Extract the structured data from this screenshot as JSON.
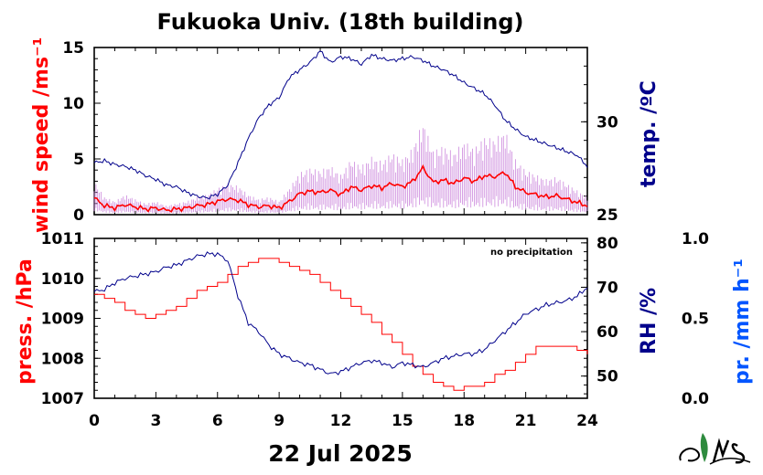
{
  "title": "Fukuoka Univ. (18th building)",
  "date_label": "22 Jul 2025",
  "note": "no precipitation",
  "colors": {
    "wind": "#ff0000",
    "wind_gust": "#cc88dd",
    "temp": "#00008b",
    "press": "#ff0000",
    "rh": "#00008b",
    "precip": "#0055ff"
  },
  "chart_data": [
    {
      "type": "line",
      "panel": "top",
      "x_ticks": [
        "0",
        "3",
        "6",
        "9",
        "12",
        "15",
        "18",
        "21",
        "24"
      ],
      "xlim": [
        0,
        24
      ],
      "y_left": {
        "label": "wind speed /ms⁻¹",
        "ticks": [
          "0",
          "5",
          "10",
          "15"
        ],
        "lim": [
          0,
          15
        ]
      },
      "y_right": {
        "label": "temp. /ºC",
        "ticks": [
          "25",
          "30"
        ],
        "lim": [
          25,
          34
        ]
      },
      "series": [
        {
          "axis": "left",
          "x": [
            0,
            0.5,
            1,
            1.5,
            2,
            2.5,
            3,
            3.5,
            4,
            4.5,
            5,
            5.5,
            6,
            6.5,
            7,
            7.5,
            8,
            8.5,
            9,
            9.5,
            10,
            10.5,
            11,
            11.5,
            12,
            12.5,
            13,
            13.5,
            14,
            14.5,
            15,
            15.5,
            16,
            16.5,
            17,
            17.5,
            18,
            18.5,
            19,
            19.5,
            20,
            20.5,
            21,
            21.5,
            22,
            22.5,
            23,
            23.5,
            24
          ],
          "y": [
            1.5,
            0.8,
            0.6,
            0.9,
            0.7,
            0.5,
            0.6,
            0.4,
            0.5,
            0.6,
            0.8,
            0.9,
            1.2,
            1.4,
            1.3,
            0.9,
            0.7,
            0.8,
            0.6,
            1.2,
            1.9,
            2.1,
            2.0,
            2.2,
            1.8,
            2.5,
            2.2,
            2.6,
            2.4,
            2.8,
            2.5,
            3.0,
            4.2,
            2.9,
            3.1,
            2.8,
            3.3,
            3.0,
            3.5,
            3.4,
            3.8,
            2.5,
            2.0,
            1.8,
            1.6,
            1.7,
            1.4,
            1.1,
            0.8
          ]
        },
        {
          "axis": "right",
          "x": [
            0,
            0.5,
            1,
            1.5,
            2,
            2.5,
            3,
            3.5,
            4,
            4.5,
            5,
            5.5,
            6,
            6.5,
            7,
            7.5,
            8,
            8.5,
            9,
            9.5,
            10,
            10.5,
            11,
            11.5,
            12,
            12.5,
            13,
            13.5,
            14,
            14.5,
            15,
            15.5,
            16,
            16.5,
            17,
            17.5,
            18,
            18.5,
            19,
            19.5,
            20,
            20.5,
            21,
            21.5,
            22,
            22.5,
            23,
            23.5,
            24
          ],
          "y": [
            27.8,
            27.9,
            27.7,
            27.6,
            27.4,
            27.1,
            26.9,
            26.6,
            26.5,
            26.2,
            26.0,
            25.9,
            26.1,
            26.6,
            27.8,
            29.1,
            30.2,
            30.9,
            31.3,
            32.4,
            32.8,
            33.2,
            33.8,
            33.2,
            33.5,
            33.4,
            33.1,
            33.6,
            33.4,
            33.3,
            33.4,
            33.5,
            33.3,
            33.0,
            32.8,
            32.5,
            32.1,
            31.8,
            31.5,
            30.9,
            30.1,
            29.6,
            29.2,
            29.0,
            28.8,
            28.6,
            28.4,
            28.2,
            27.6
          ]
        }
      ]
    },
    {
      "type": "line",
      "panel": "bottom",
      "x_ticks": [
        "0",
        "3",
        "6",
        "9",
        "12",
        "15",
        "18",
        "21",
        "24"
      ],
      "xlim": [
        0,
        24
      ],
      "y_left": {
        "label": "press. /hPa",
        "ticks": [
          "1007",
          "1008",
          "1009",
          "1010",
          "1011"
        ],
        "lim": [
          1007,
          1011
        ]
      },
      "y_right": {
        "label": "RH /%",
        "ticks": [
          "50",
          "60",
          "70",
          "80"
        ],
        "lim": [
          45,
          81
        ]
      },
      "y_far_right": {
        "label": "pr. /mm h⁻¹",
        "ticks": [
          "0.0",
          "0.5",
          "1.0"
        ],
        "lim": [
          0,
          1
        ]
      },
      "series": [
        {
          "axis": "left",
          "x": [
            0,
            0.5,
            1,
            1.5,
            2,
            2.5,
            3,
            3.5,
            4,
            4.5,
            5,
            5.5,
            6,
            6.5,
            7,
            7.5,
            8,
            8.5,
            9,
            9.5,
            10,
            10.5,
            11,
            11.5,
            12,
            12.5,
            13,
            13.5,
            14,
            14.5,
            15,
            15.5,
            16,
            16.5,
            17,
            17.5,
            18,
            18.5,
            19,
            19.5,
            20,
            20.5,
            21,
            21.5,
            22,
            22.5,
            23,
            23.5,
            24
          ],
          "y": [
            1009.6,
            1009.5,
            1009.4,
            1009.2,
            1009.1,
            1009.0,
            1009.1,
            1009.2,
            1009.3,
            1009.5,
            1009.7,
            1009.8,
            1009.9,
            1010.1,
            1010.3,
            1010.4,
            1010.5,
            1010.5,
            1010.4,
            1010.3,
            1010.2,
            1010.1,
            1009.9,
            1009.7,
            1009.5,
            1009.3,
            1009.1,
            1008.9,
            1008.6,
            1008.4,
            1008.1,
            1007.8,
            1007.6,
            1007.4,
            1007.3,
            1007.2,
            1007.3,
            1007.3,
            1007.4,
            1007.6,
            1007.7,
            1007.9,
            1008.1,
            1008.3,
            1008.3,
            1008.3,
            1008.3,
            1008.2,
            1008.1
          ]
        },
        {
          "axis": "right",
          "x": [
            0,
            0.5,
            1,
            1.5,
            2,
            2.5,
            3,
            3.5,
            4,
            4.5,
            5,
            5.5,
            6,
            6.5,
            7,
            7.5,
            8,
            8.5,
            9,
            9.5,
            10,
            10.5,
            11,
            11.5,
            12,
            12.5,
            13,
            13.5,
            14,
            14.5,
            15,
            15.5,
            16,
            16.5,
            17,
            17.5,
            18,
            18.5,
            19,
            19.5,
            20,
            20.5,
            21,
            21.5,
            22,
            22.5,
            23,
            23.5,
            24
          ],
          "y": [
            69,
            69.5,
            71,
            72,
            72.5,
            73,
            73.5,
            74.5,
            75,
            76,
            77,
            77.5,
            77.5,
            76,
            68,
            62,
            60,
            57,
            55,
            54,
            53,
            52.5,
            51.5,
            50.5,
            51,
            52,
            53,
            53.5,
            53,
            52,
            53,
            52.5,
            52,
            53,
            54,
            54.5,
            55,
            55,
            56,
            58,
            60,
            62,
            64,
            65,
            66,
            66.5,
            67,
            68,
            70
          ]
        }
      ]
    }
  ]
}
